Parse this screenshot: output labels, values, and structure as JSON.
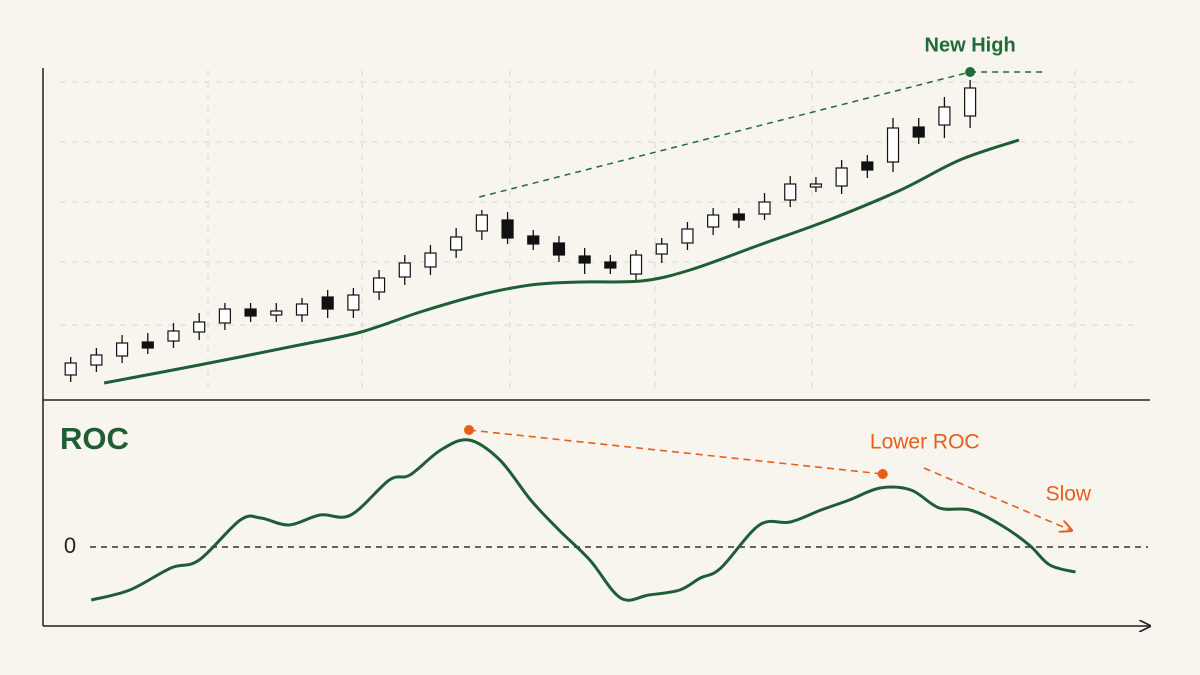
{
  "chart_data": [
    {
      "type": "candlestick",
      "x": [
        1,
        2,
        3,
        4,
        5,
        6,
        7,
        8,
        9,
        10,
        11,
        12,
        13,
        14,
        15,
        16,
        17,
        18,
        19,
        20,
        21,
        22,
        23,
        24,
        25,
        26,
        27,
        28,
        29,
        30,
        31,
        32,
        33,
        34,
        35,
        36
      ],
      "open": [
        20,
        30,
        39,
        53,
        54,
        63,
        72,
        86,
        80,
        80,
        98,
        85,
        103,
        118,
        128,
        145,
        164,
        175,
        159,
        152,
        139,
        133,
        121,
        141,
        152,
        168,
        181,
        181,
        195,
        208,
        209,
        233,
        233,
        268,
        270,
        279
      ],
      "high": [
        38,
        47,
        60,
        62,
        72,
        82,
        92,
        92,
        92,
        97,
        105,
        107,
        125,
        140,
        150,
        167,
        185,
        183,
        165,
        159,
        147,
        140,
        145,
        157,
        173,
        187,
        187,
        202,
        219,
        218,
        235,
        240,
        277,
        277,
        298,
        315
      ],
      "low": [
        13,
        23,
        32,
        41,
        47,
        55,
        65,
        73,
        73,
        73,
        77,
        77,
        95,
        110,
        120,
        137,
        155,
        151,
        145,
        133,
        121,
        121,
        115,
        132,
        145,
        160,
        167,
        175,
        188,
        203,
        201,
        217,
        223,
        251,
        257,
        267
      ],
      "close": [
        32,
        40,
        52,
        47,
        64,
        73,
        86,
        79,
        84,
        91,
        86,
        100,
        117,
        132,
        142,
        158,
        180,
        157,
        151,
        140,
        132,
        127,
        140,
        151,
        166,
        180,
        175,
        193,
        211,
        211,
        227,
        225,
        267,
        258,
        288,
        307
      ],
      "up_color": "#ffffff",
      "down_color": "#111111",
      "moving_average": {
        "color": "#1f5e35",
        "x": [
          2.3,
          6,
          9.9,
          12.3,
          14.6,
          16.9,
          18.9,
          20.8,
          23.2,
          25.1,
          27.8,
          30.5,
          33.3,
          35.6,
          37.9
        ],
        "values": [
          12,
          30,
          50,
          63,
          83,
          100,
          110,
          113,
          114,
          125,
          150,
          175,
          205,
          235,
          255
        ]
      },
      "annotation": {
        "text": "New High",
        "color": "#1f6b3a",
        "x": [
          16.9,
          36,
          38.9
        ],
        "values": [
          198,
          323,
          323
        ]
      },
      "xlim": [
        0,
        43
      ],
      "ylim": [
        0,
        335
      ]
    },
    {
      "type": "line",
      "title": "ROC",
      "color": "#1f5e35",
      "x": [
        1.8,
        3.3,
        4.9,
        6,
        7.6,
        8.4,
        9.5,
        10.7,
        11.9,
        13.4,
        14.2,
        15.4,
        16.5,
        17.7,
        18.9,
        20,
        21.2,
        22.4,
        23.5,
        24.7,
        25.5,
        26.3,
        27.8,
        29,
        30.2,
        31.3,
        32.5,
        33.7,
        34.8,
        36,
        37.2,
        38.3,
        39.1,
        40.1
      ],
      "values": [
        -53,
        -43,
        -21,
        -13,
        27,
        29,
        22,
        32,
        32,
        67,
        72,
        97,
        107,
        87,
        47,
        17,
        -13,
        -51,
        -48,
        -43,
        -31,
        -21,
        22,
        25,
        37,
        47,
        59,
        57,
        39,
        37,
        22,
        2,
        -18,
        -25
      ],
      "annotations": [
        {
          "text": "Lower ROC",
          "color": "#e85d1a",
          "x": [
            16.5,
            32.6
          ],
          "values": [
            117,
            73
          ]
        },
        {
          "text": "Slow",
          "color": "#e85d1a",
          "x": [
            34.2,
            39.9
          ],
          "values": [
            79,
            17
          ]
        }
      ],
      "xlim": [
        0,
        43
      ],
      "ylim": [
        -78,
        147
      ],
      "yticks": [
        0
      ]
    }
  ]
}
